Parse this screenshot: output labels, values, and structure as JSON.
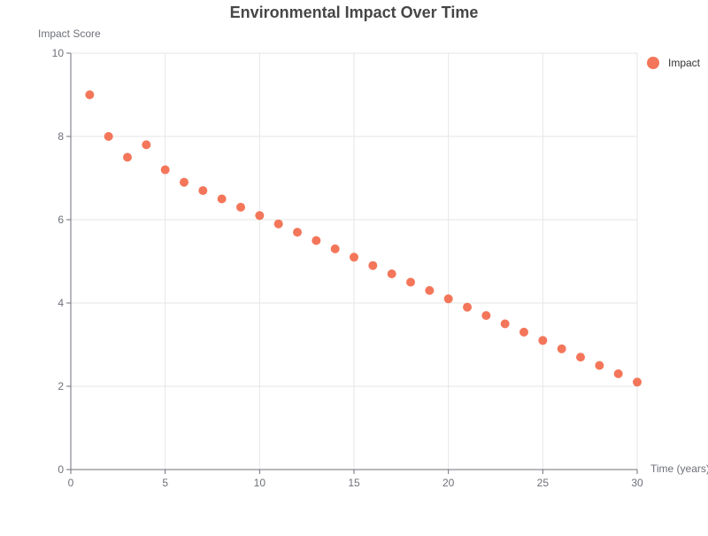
{
  "chart_data": {
    "type": "scatter",
    "title": "Environmental Impact Over Time",
    "xlabel": "Time (years)",
    "ylabel": "Impact Score",
    "xlim": [
      0,
      30
    ],
    "ylim": [
      0,
      10
    ],
    "x_ticks": [
      0,
      5,
      10,
      15,
      20,
      25,
      30
    ],
    "y_ticks": [
      0,
      2,
      4,
      6,
      8,
      10
    ],
    "grid": true,
    "legend": {
      "position": "top-right",
      "entries": [
        "Impact"
      ]
    },
    "series": [
      {
        "name": "Impact",
        "color": "#f4765a",
        "points": [
          [
            1,
            9.0
          ],
          [
            2,
            8.0
          ],
          [
            3,
            7.5
          ],
          [
            4,
            7.8
          ],
          [
            5,
            7.2
          ],
          [
            6,
            6.9
          ],
          [
            7,
            6.7
          ],
          [
            8,
            6.5
          ],
          [
            9,
            6.3
          ],
          [
            10,
            6.1
          ],
          [
            11,
            5.9
          ],
          [
            12,
            5.7
          ],
          [
            13,
            5.5
          ],
          [
            14,
            5.3
          ],
          [
            15,
            5.1
          ],
          [
            16,
            4.9
          ],
          [
            17,
            4.7
          ],
          [
            18,
            4.5
          ],
          [
            19,
            4.3
          ],
          [
            20,
            4.1
          ],
          [
            21,
            3.9
          ],
          [
            22,
            3.7
          ],
          [
            23,
            3.5
          ],
          [
            24,
            3.3
          ],
          [
            25,
            3.1
          ],
          [
            26,
            2.9
          ],
          [
            27,
            2.7
          ],
          [
            28,
            2.5
          ],
          [
            29,
            2.3
          ],
          [
            30,
            2.1
          ]
        ]
      }
    ]
  }
}
